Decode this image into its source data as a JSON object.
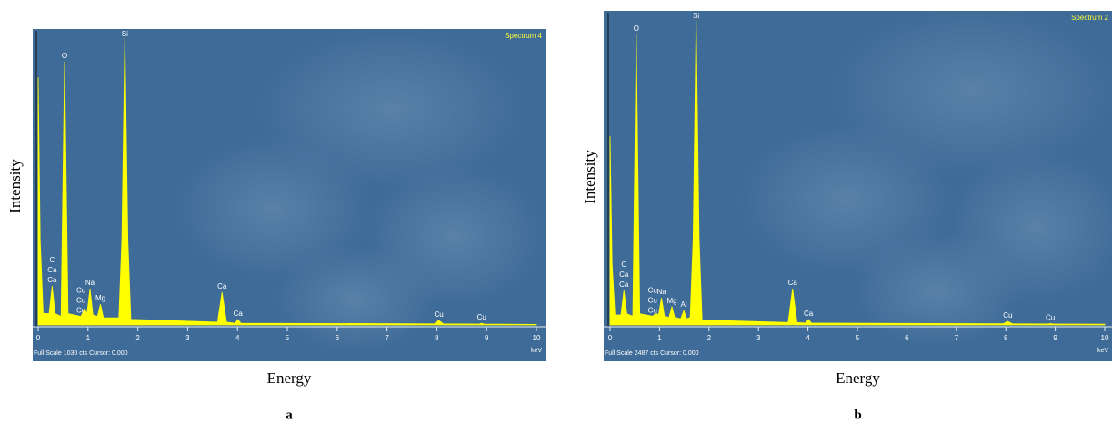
{
  "chart_data": [
    {
      "type": "area",
      "title": "Spectrum 4",
      "footer_text": "Full Scale 1030 cts Cursor: 0.000",
      "x_unit": "keV",
      "x_label": "Energy",
      "y_label": "Intensity",
      "panel_label": "a",
      "color": "#ffff00",
      "xlim": [
        0,
        10
      ],
      "xticks": [
        0,
        1,
        2,
        3,
        4,
        5,
        6,
        7,
        8,
        9,
        10
      ],
      "ylim": [
        0,
        1030
      ],
      "series": [
        {
          "x": [
            0,
            0.04,
            0.1,
            0.22,
            0.28,
            0.34,
            0.46,
            0.53,
            0.6,
            0.86,
            0.93,
            0.98,
            1.04,
            1.1,
            1.19,
            1.25,
            1.31,
            1.62,
            1.68,
            1.74,
            1.8,
            1.86,
            3.6,
            3.69,
            3.78,
            3.95,
            4.01,
            4.07,
            7.95,
            8.04,
            8.13,
            8.85,
            8.9,
            8.95,
            10
          ],
          "values": [
            870,
            300,
            40,
            40,
            137,
            40,
            30,
            925,
            40,
            30,
            57,
            40,
            128,
            35,
            30,
            73,
            25,
            25,
            300,
            1020,
            300,
            20,
            10,
            115,
            10,
            6,
            19,
            6,
            4,
            16,
            4,
            3,
            6,
            3,
            2
          ]
        }
      ],
      "annotations": [
        {
          "x": 0.28,
          "labels": [
            "C",
            "Ca",
            "Ca"
          ]
        },
        {
          "x": 0.53,
          "labels": [
            "O"
          ]
        },
        {
          "x": 0.86,
          "labels": [
            "Cu",
            "Cu",
            "Cu"
          ]
        },
        {
          "x": 1.04,
          "labels": [
            "Na"
          ]
        },
        {
          "x": 1.25,
          "labels": [
            "Mg"
          ]
        },
        {
          "x": 1.74,
          "labels": [
            "Si"
          ]
        },
        {
          "x": 3.69,
          "labels": [
            "Ca"
          ]
        },
        {
          "x": 4.01,
          "labels": [
            "Ca"
          ]
        },
        {
          "x": 8.04,
          "labels": [
            "Cu"
          ]
        },
        {
          "x": 8.9,
          "labels": [
            "Cu"
          ]
        }
      ]
    },
    {
      "type": "area",
      "title": "Spectrum 2",
      "footer_text": "Full Scale 2487 cts Cursor: 0.000",
      "x_unit": "keV",
      "x_label": "Energy",
      "y_label": "Intensity",
      "panel_label": "b",
      "color": "#ffff00",
      "xlim": [
        0,
        10
      ],
      "xticks": [
        0,
        1,
        2,
        3,
        4,
        5,
        6,
        7,
        8,
        9,
        10
      ],
      "ylim": [
        0,
        2487
      ],
      "series": [
        {
          "x": [
            0,
            0.04,
            0.1,
            0.22,
            0.28,
            0.34,
            0.46,
            0.53,
            0.6,
            0.86,
            0.93,
            0.98,
            1.04,
            1.1,
            1.19,
            1.25,
            1.31,
            1.43,
            1.49,
            1.55,
            1.62,
            1.68,
            1.74,
            1.8,
            1.86,
            3.6,
            3.69,
            3.78,
            3.95,
            4.01,
            4.07,
            7.95,
            8.04,
            8.13,
            8.85,
            8.9,
            8.95,
            10
          ],
          "values": [
            1521,
            500,
            80,
            80,
            278,
            90,
            70,
            2341,
            90,
            70,
            95,
            80,
            219,
            70,
            60,
            146,
            60,
            50,
            117,
            50,
            60,
            700,
            2480,
            700,
            40,
            20,
            293,
            20,
            15,
            44,
            15,
            10,
            29,
            10,
            8,
            12,
            8,
            6
          ]
        }
      ],
      "annotations": [
        {
          "x": 0.28,
          "labels": [
            "C",
            "Ca",
            "Ca"
          ]
        },
        {
          "x": 0.53,
          "labels": [
            "O"
          ]
        },
        {
          "x": 0.86,
          "labels": [
            "Cu",
            "Cu",
            "Cu"
          ]
        },
        {
          "x": 1.04,
          "labels": [
            "Na"
          ]
        },
        {
          "x": 1.25,
          "labels": [
            "Mg"
          ]
        },
        {
          "x": 1.49,
          "labels": [
            "Al"
          ]
        },
        {
          "x": 1.74,
          "labels": [
            "Si"
          ]
        },
        {
          "x": 3.69,
          "labels": [
            "Ca"
          ]
        },
        {
          "x": 4.01,
          "labels": [
            "Ca"
          ]
        },
        {
          "x": 8.04,
          "labels": [
            "Cu"
          ]
        },
        {
          "x": 8.9,
          "labels": [
            "Cu"
          ]
        }
      ]
    }
  ]
}
